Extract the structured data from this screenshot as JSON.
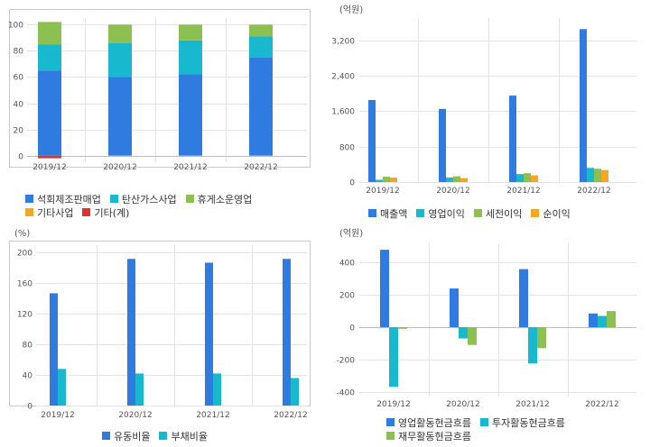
{
  "colors": {
    "blue": "#2f7be0",
    "cyan": "#18b8cf",
    "green": "#8cc152",
    "orange": "#f5a623",
    "red": "#d9352c",
    "grid": "#e3e3e3",
    "border": "#c8c8c8"
  },
  "chart_data": [
    {
      "id": "business-mix",
      "type": "bar",
      "stacked": true,
      "unit_label": "",
      "categories": [
        "2019/12",
        "2020/12",
        "2021/12",
        "2022/12"
      ],
      "ylim": [
        -5,
        105
      ],
      "yticks": [
        0,
        20,
        40,
        60,
        80,
        100
      ],
      "grid": true,
      "legend_position": "bottom",
      "series": [
        {
          "name": "석회제조판매업",
          "color": "#2f7be0",
          "values": [
            65,
            60,
            62,
            75
          ]
        },
        {
          "name": "탄산가스사업",
          "color": "#18b8cf",
          "values": [
            20,
            26,
            26,
            16
          ]
        },
        {
          "name": "휴게소운영업",
          "color": "#8cc152",
          "values": [
            17,
            14,
            12,
            9
          ]
        },
        {
          "name": "기타사업",
          "color": "#f5a623",
          "values": [
            0,
            0,
            0,
            0
          ]
        },
        {
          "name": "기타(계)",
          "color": "#d9352c",
          "values": [
            -2,
            0,
            0,
            0
          ]
        }
      ]
    },
    {
      "id": "income",
      "type": "bar",
      "stacked": false,
      "unit_label": "(억원)",
      "categories": [
        "2019/12",
        "2020/12",
        "2021/12",
        "2022/12"
      ],
      "ylim": [
        0,
        3700
      ],
      "yticks": [
        0,
        800,
        1600,
        2400,
        3200
      ],
      "ytick_labels": [
        "0",
        "800",
        "1,600",
        "2,400",
        "3,200"
      ],
      "grid": true,
      "legend_position": "bottom",
      "series": [
        {
          "name": "매출액",
          "color": "#2f7be0",
          "values": [
            1850,
            1650,
            1950,
            3450
          ]
        },
        {
          "name": "영업이익",
          "color": "#18b8cf",
          "values": [
            50,
            100,
            180,
            320
          ]
        },
        {
          "name": "세전이익",
          "color": "#8cc152",
          "values": [
            120,
            130,
            200,
            300
          ]
        },
        {
          "name": "순이익",
          "color": "#f5a623",
          "values": [
            100,
            90,
            150,
            270
          ]
        }
      ]
    },
    {
      "id": "ratios",
      "type": "bar",
      "stacked": false,
      "unit_label": "(%)",
      "categories": [
        "2019/12",
        "2020/12",
        "2021/12",
        "2022/12"
      ],
      "ylim": [
        0,
        210
      ],
      "yticks": [
        0,
        40,
        80,
        120,
        160,
        200
      ],
      "grid": true,
      "legend_position": "bottom",
      "series": [
        {
          "name": "유동비율",
          "color": "#2f7be0",
          "values": [
            147,
            192,
            187,
            192
          ]
        },
        {
          "name": "부채비율",
          "color": "#18b8cf",
          "values": [
            48,
            42,
            42,
            36
          ]
        }
      ]
    },
    {
      "id": "cashflow",
      "type": "bar",
      "stacked": false,
      "unit_label": "(억원)",
      "categories": [
        "2019/12",
        "2020/12",
        "2021/12",
        "2022/12"
      ],
      "ylim": [
        -430,
        520
      ],
      "yticks": [
        -400,
        -200,
        0,
        200,
        400
      ],
      "ytick_labels": [
        "-400",
        "-200",
        "0",
        "200",
        "400"
      ],
      "grid": true,
      "legend_position": "bottom",
      "series": [
        {
          "name": "영업활동현금흐름",
          "color": "#2f7be0",
          "values": [
            480,
            240,
            360,
            85
          ]
        },
        {
          "name": "투자활동현금흐름",
          "color": "#18b8cf",
          "values": [
            -370,
            -70,
            -225,
            70
          ]
        },
        {
          "name": "재무활동현금흐름",
          "color": "#8cc152",
          "values": [
            -10,
            -110,
            -130,
            100
          ]
        }
      ]
    }
  ]
}
